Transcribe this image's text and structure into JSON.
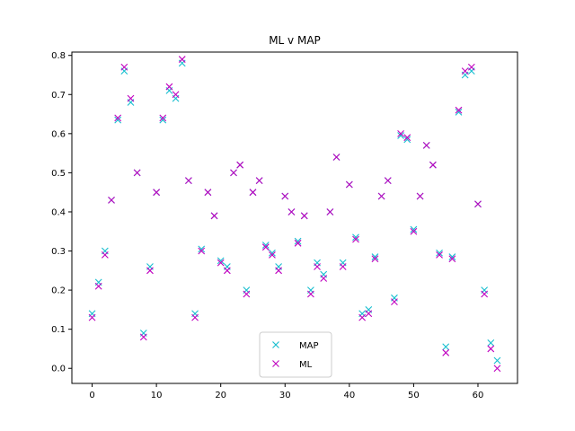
{
  "chart_data": {
    "type": "scatter",
    "title": "ML v MAP",
    "xlabel": "",
    "ylabel": "",
    "xlim": [
      -3.15,
      66.15
    ],
    "ylim": [
      -0.0385,
      0.8085
    ],
    "xticks": [
      0,
      10,
      20,
      30,
      40,
      50,
      60
    ],
    "yticks": [
      0.0,
      0.1,
      0.2,
      0.3,
      0.4,
      0.5,
      0.6,
      0.7,
      0.8
    ],
    "ytick_labels": [
      "0.0",
      "0.1",
      "0.2",
      "0.3",
      "0.4",
      "0.5",
      "0.6",
      "0.7",
      "0.8"
    ],
    "grid": false,
    "legend_position": "lower center",
    "marker": "x",
    "series": [
      {
        "name": "MAP",
        "color": "#17becf",
        "x": [
          0,
          1,
          2,
          3,
          4,
          5,
          6,
          7,
          8,
          9,
          10,
          11,
          12,
          13,
          14,
          15,
          16,
          17,
          18,
          19,
          20,
          21,
          22,
          23,
          24,
          25,
          26,
          27,
          28,
          29,
          30,
          31,
          32,
          33,
          34,
          35,
          36,
          37,
          38,
          39,
          40,
          41,
          42,
          43,
          44,
          45,
          46,
          47,
          48,
          49,
          50,
          51,
          52,
          53,
          54,
          55,
          56,
          57,
          58,
          59,
          60,
          61,
          62,
          63
        ],
        "y": [
          0.14,
          0.22,
          0.3,
          0.43,
          0.635,
          0.76,
          0.68,
          0.5,
          0.09,
          0.26,
          0.45,
          0.635,
          0.71,
          0.69,
          0.78,
          0.48,
          0.14,
          0.305,
          0.45,
          0.39,
          0.275,
          0.26,
          0.5,
          0.52,
          0.2,
          0.45,
          0.48,
          0.315,
          0.295,
          0.26,
          0.44,
          0.4,
          0.325,
          0.39,
          0.2,
          0.27,
          0.24,
          0.4,
          0.54,
          0.27,
          0.47,
          0.335,
          0.14,
          0.15,
          0.285,
          0.44,
          0.48,
          0.18,
          0.595,
          0.585,
          0.355,
          0.44,
          0.57,
          0.52,
          0.295,
          0.055,
          0.285,
          0.655,
          0.75,
          0.76,
          0.42,
          0.2,
          0.065,
          0.02
        ]
      },
      {
        "name": "ML",
        "color": "#bf00bf",
        "x": [
          0,
          1,
          2,
          3,
          4,
          5,
          6,
          7,
          8,
          9,
          10,
          11,
          12,
          13,
          14,
          15,
          16,
          17,
          18,
          19,
          20,
          21,
          22,
          23,
          24,
          25,
          26,
          27,
          28,
          29,
          30,
          31,
          32,
          33,
          34,
          35,
          36,
          37,
          38,
          39,
          40,
          41,
          42,
          43,
          44,
          45,
          46,
          47,
          48,
          49,
          50,
          51,
          52,
          53,
          54,
          55,
          56,
          57,
          58,
          59,
          60,
          61,
          62,
          63
        ],
        "y": [
          0.13,
          0.21,
          0.29,
          0.43,
          0.64,
          0.77,
          0.69,
          0.5,
          0.08,
          0.25,
          0.45,
          0.64,
          0.72,
          0.7,
          0.79,
          0.48,
          0.13,
          0.3,
          0.45,
          0.39,
          0.27,
          0.25,
          0.5,
          0.52,
          0.19,
          0.45,
          0.48,
          0.31,
          0.29,
          0.25,
          0.44,
          0.4,
          0.32,
          0.39,
          0.19,
          0.26,
          0.23,
          0.4,
          0.54,
          0.26,
          0.47,
          0.33,
          0.13,
          0.14,
          0.28,
          0.44,
          0.48,
          0.17,
          0.6,
          0.59,
          0.35,
          0.44,
          0.57,
          0.52,
          0.29,
          0.04,
          0.28,
          0.66,
          0.76,
          0.77,
          0.42,
          0.19,
          0.05,
          0.0
        ]
      }
    ]
  }
}
